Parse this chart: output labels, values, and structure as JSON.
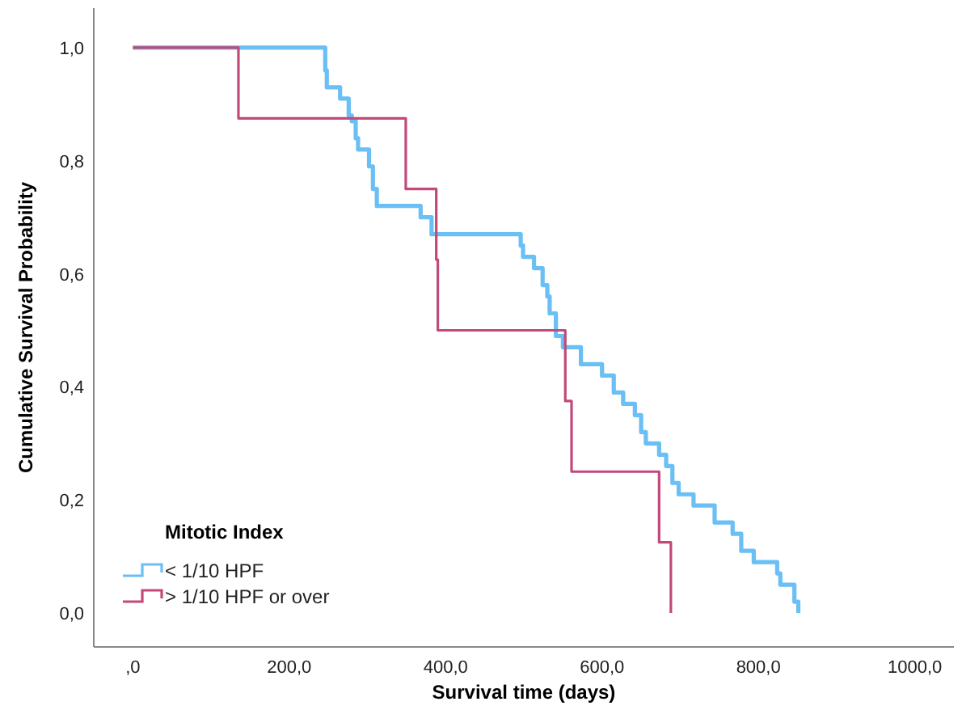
{
  "chart_data": {
    "type": "step",
    "xlabel": "Survival time (days)",
    "ylabel": "Cumulative Survival Probability",
    "legend_title": "Mitotic Index",
    "legend": "bottom left",
    "grid": false,
    "xlim": [
      -50,
      1050
    ],
    "ylim": [
      -0.06,
      1.07
    ],
    "xticks": [
      {
        "value": 0,
        "label": ",0"
      },
      {
        "value": 200,
        "label": "200,0"
      },
      {
        "value": 400,
        "label": "400,0"
      },
      {
        "value": 600,
        "label": "600,0"
      },
      {
        "value": 800,
        "label": "800,0"
      },
      {
        "value": 1000,
        "label": "1000,0"
      }
    ],
    "yticks": [
      {
        "value": 0,
        "label": "0,0"
      },
      {
        "value": 0.2,
        "label": "0,2"
      },
      {
        "value": 0.4,
        "label": "0,4"
      },
      {
        "value": 0.6,
        "label": "0,6"
      },
      {
        "value": 0.8,
        "label": "0,8"
      },
      {
        "value": 1,
        "label": "1,0"
      }
    ],
    "series": [
      {
        "name": "< 1/10 HPF",
        "color": "#6abff5",
        "x": [
          0,
          246,
          248,
          265,
          276,
          280,
          285,
          288,
          302,
          307,
          312,
          368,
          382,
          496,
          499,
          513,
          524,
          530,
          533,
          541,
          550,
          573,
          600,
          615,
          627,
          642,
          650,
          656,
          673,
          682,
          690,
          698,
          717,
          744,
          767,
          778,
          794,
          824,
          828,
          846,
          851
        ],
        "values": [
          1,
          0.96,
          0.93,
          0.91,
          0.88,
          0.87,
          0.84,
          0.82,
          0.79,
          0.75,
          0.72,
          0.7,
          0.67,
          0.65,
          0.63,
          0.61,
          0.58,
          0.56,
          0.53,
          0.49,
          0.47,
          0.44,
          0.42,
          0.39,
          0.37,
          0.35,
          0.32,
          0.3,
          0.28,
          0.26,
          0.23,
          0.21,
          0.19,
          0.16,
          0.14,
          0.11,
          0.09,
          0.07,
          0.05,
          0.02,
          0
        ]
      },
      {
        "name": "> 1/10 HPF or over",
        "color": "#c2497a",
        "x": [
          0,
          135,
          349,
          388,
          390,
          553,
          561,
          673,
          688
        ],
        "values": [
          1,
          0.875,
          0.75,
          0.625,
          0.5,
          0.375,
          0.25,
          0.125,
          0
        ]
      }
    ]
  }
}
